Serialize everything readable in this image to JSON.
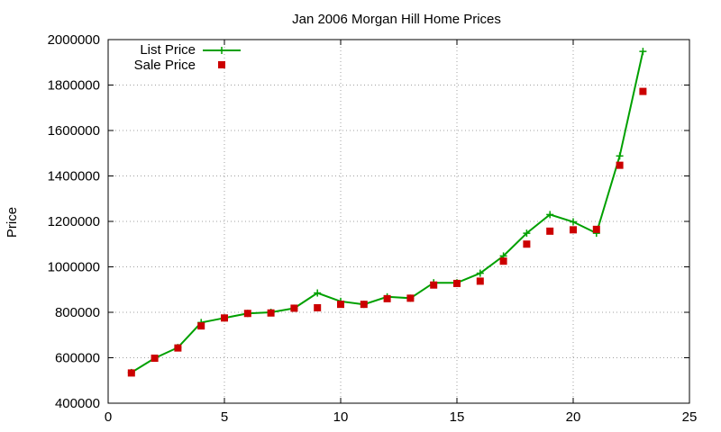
{
  "chart_data": {
    "type": "line",
    "title": "Jan 2006 Morgan Hill Home Prices",
    "xlabel": "",
    "ylabel": "Price",
    "xlim": [
      0,
      25
    ],
    "ylim": [
      400000,
      2000000
    ],
    "xticks": [
      0,
      5,
      10,
      15,
      20,
      25
    ],
    "yticks": [
      400000,
      600000,
      800000,
      1000000,
      1200000,
      1400000,
      1600000,
      1800000,
      2000000
    ],
    "grid": true,
    "legend_position": "top-left",
    "series": [
      {
        "name": "List Price",
        "style": "line-plus",
        "color": "#00a000",
        "x": [
          1,
          2,
          3,
          4,
          5,
          6,
          7,
          8,
          9,
          10,
          11,
          12,
          13,
          14,
          15,
          16,
          17,
          18,
          19,
          20,
          21,
          22,
          23
        ],
        "values": [
          535000,
          598000,
          645000,
          755000,
          775000,
          795000,
          800000,
          818000,
          885000,
          848000,
          835000,
          868000,
          862000,
          930000,
          930000,
          972000,
          1048000,
          1148000,
          1230000,
          1198000,
          1148000,
          1488000,
          1948000
        ]
      },
      {
        "name": "Sale Price",
        "style": "square-points",
        "color": "#cc0000",
        "x": [
          1,
          2,
          3,
          4,
          5,
          6,
          7,
          8,
          9,
          10,
          11,
          12,
          13,
          14,
          15,
          16,
          17,
          18,
          19,
          20,
          21,
          22,
          23
        ],
        "values": [
          533000,
          598000,
          643000,
          740000,
          775000,
          795000,
          797000,
          818000,
          820000,
          835000,
          835000,
          860000,
          862000,
          920000,
          927000,
          937000,
          1025000,
          1100000,
          1157000,
          1163000,
          1165000,
          1447000,
          1772000
        ]
      }
    ]
  }
}
